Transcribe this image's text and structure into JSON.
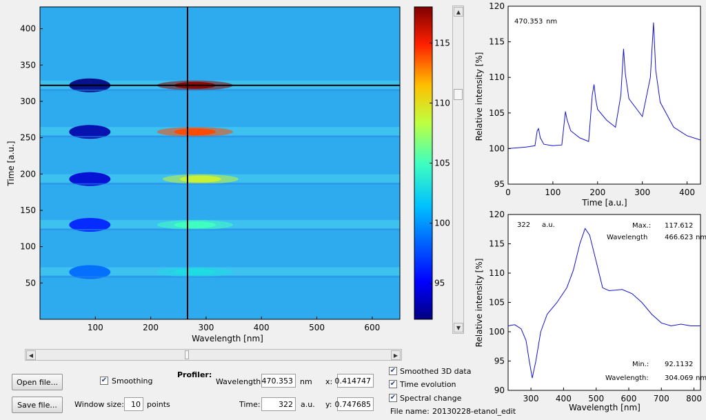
{
  "heatmap": {
    "xlabel": "Wavelength [nm]",
    "ylabel": "Time [a.u.]",
    "x_ticks": [
      "100",
      "200",
      "300",
      "400",
      "500",
      "600"
    ],
    "y_ticks": [
      "50",
      "100",
      "150",
      "200",
      "250",
      "300",
      "350",
      "400"
    ],
    "crosshair_wavelength_nm": 470.353,
    "crosshair_time": 322
  },
  "colorbar": {
    "ticks": [
      "95",
      "100",
      "105",
      "110",
      "115"
    ],
    "range": [
      92,
      118
    ]
  },
  "time_plot": {
    "annotation_value": "470.353",
    "annotation_unit": "nm",
    "xlabel": "Time [a.u.]",
    "ylabel": "Relative intensity [%]",
    "x_ticks": [
      "0",
      "100",
      "200",
      "300",
      "400"
    ],
    "y_ticks": [
      "95",
      "100",
      "105",
      "110",
      "115",
      "120"
    ]
  },
  "spectrum_plot": {
    "annotation_value": "322",
    "annotation_unit": "a.u.",
    "max_label": "Max.:",
    "max_value": "117.612",
    "max_wl_label": "Wavelength",
    "max_wl_value": "466.623",
    "max_wl_unit": "nm",
    "min_label": "Min.:",
    "min_value": "92.1132",
    "min_wl_label": "Wavelength:",
    "min_wl_value": "304.069",
    "min_wl_unit": "nm",
    "xlabel": "Wavelength [nm]",
    "ylabel": "Relative intensity [%]",
    "x_ticks": [
      "300",
      "400",
      "500",
      "600",
      "700",
      "800"
    ],
    "y_ticks": [
      "90",
      "95",
      "100",
      "105",
      "110",
      "115",
      "120"
    ]
  },
  "controls": {
    "open_button": "Open file...",
    "save_button": "Save file...",
    "smoothing_label": "Smoothing",
    "smoothing_checked": true,
    "window_size_label": "Window size:",
    "window_size_value": "10",
    "window_size_unit": "points",
    "profiler_label": "Profiler:",
    "wavelength_label": "Wavelength:",
    "wavelength_value": "470.353",
    "wavelength_unit": "nm",
    "time_label": "Time:",
    "time_value": "322",
    "time_unit": "a.u.",
    "x_label": "x:",
    "x_value": "0.414747",
    "y_label": "y:",
    "y_value": "0.747685",
    "check_smoothed3d": "Smoothed 3D data",
    "check_time_evolution": "Time evolution",
    "check_spectral_change": "Spectral change",
    "filename_label": "File name:",
    "filename_value": "20130228-etanol_edit"
  },
  "chart_data": [
    {
      "type": "line",
      "name": "time-evolution",
      "xlabel": "Time [a.u.]",
      "ylabel": "Relative intensity [%]",
      "xlim": [
        0,
        430
      ],
      "ylim": [
        95,
        120
      ],
      "x": [
        0,
        20,
        40,
        60,
        65,
        68,
        72,
        80,
        100,
        120,
        128,
        132,
        140,
        160,
        180,
        188,
        192,
        196,
        200,
        220,
        240,
        252,
        258,
        262,
        270,
        300,
        318,
        325,
        330,
        340,
        370,
        400,
        430
      ],
      "y": [
        100,
        100.1,
        100.2,
        100.4,
        102.5,
        102.8,
        101.5,
        100.6,
        100.4,
        100.5,
        105.2,
        104,
        102.5,
        101.5,
        101,
        107.5,
        109,
        106.8,
        105.5,
        104,
        103,
        107.5,
        114,
        110.5,
        107,
        104.5,
        110,
        117.7,
        111,
        106.5,
        103,
        101.8,
        101.2
      ]
    },
    {
      "type": "line",
      "name": "spectrum",
      "xlabel": "Wavelength [nm]",
      "ylabel": "Relative intensity [%]",
      "xlim": [
        230,
        820
      ],
      "ylim": [
        90,
        120
      ],
      "x": [
        230,
        250,
        270,
        285,
        295,
        304,
        315,
        330,
        350,
        380,
        410,
        430,
        450,
        466,
        480,
        500,
        520,
        540,
        580,
        610,
        640,
        670,
        700,
        730,
        760,
        790,
        820
      ],
      "y": [
        101,
        101.2,
        100.5,
        98.5,
        95,
        92.1,
        95,
        100,
        103,
        105,
        107.5,
        110.5,
        115,
        117.6,
        116.5,
        112,
        107.5,
        107,
        107.2,
        106.5,
        105,
        103,
        101.5,
        101,
        101.3,
        101,
        101
      ]
    },
    {
      "type": "heatmap",
      "name": "wavelength-time-map",
      "xlabel": "Wavelength [nm]",
      "ylabel": "Time [a.u.]",
      "xlim": [
        0,
        650
      ],
      "ylim": [
        0,
        430
      ],
      "zlim": [
        92,
        118
      ],
      "events": [
        {
          "time": 65,
          "dip_nm": 90,
          "peak_nm": 280,
          "dip": 98.5,
          "peak": 103
        },
        {
          "time": 130,
          "dip_nm": 90,
          "peak_nm": 280,
          "dip": 96,
          "peak": 105
        },
        {
          "time": 193,
          "dip_nm": 90,
          "peak_nm": 290,
          "dip": 94,
          "peak": 109
        },
        {
          "time": 258,
          "dip_nm": 90,
          "peak_nm": 280,
          "dip": 93,
          "peak": 114
        },
        {
          "time": 322,
          "dip_nm": 90,
          "peak_nm": 280,
          "dip": 92,
          "peak": 117.6
        }
      ]
    }
  ]
}
